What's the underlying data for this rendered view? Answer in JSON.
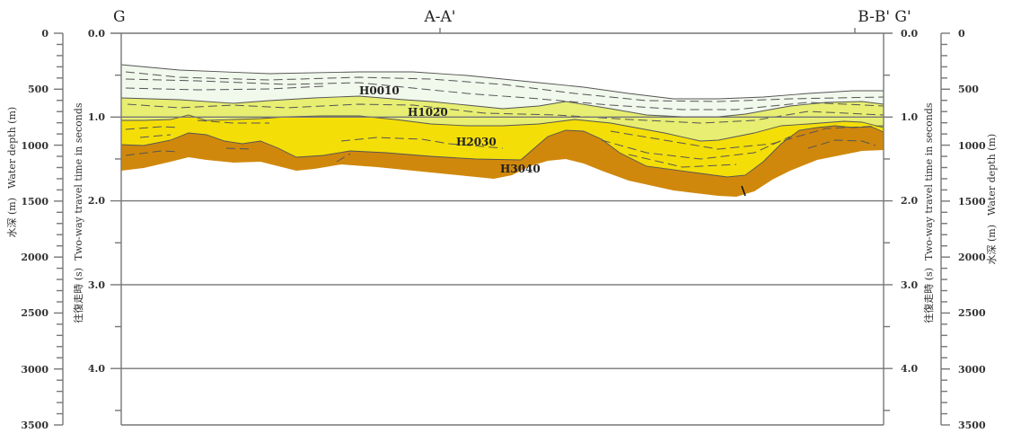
{
  "section_labels": {
    "left": "G",
    "middle": "A-A'",
    "right": "B-B' G'"
  },
  "time_axis": {
    "label": "Two-way travel time in seconds",
    "label_jp": "往復走時 (s)",
    "ticks": [
      "0.0",
      "1.0",
      "2.0",
      "3.0",
      "4.0"
    ]
  },
  "depth_axis": {
    "label": "Water depth (m)",
    "label_jp": "水深 (m)",
    "ticks": [
      "0",
      "500",
      "1000",
      "1500",
      "2000",
      "2500",
      "3000",
      "3500"
    ]
  },
  "horizons": [
    "H0010",
    "H1020",
    "H2030",
    "H3040"
  ],
  "colors": {
    "unit_0010": "#f1f8ec",
    "unit_1020": "#e7ee72",
    "unit_2030": "#f4de08",
    "unit_3040": "#d0880c"
  }
}
